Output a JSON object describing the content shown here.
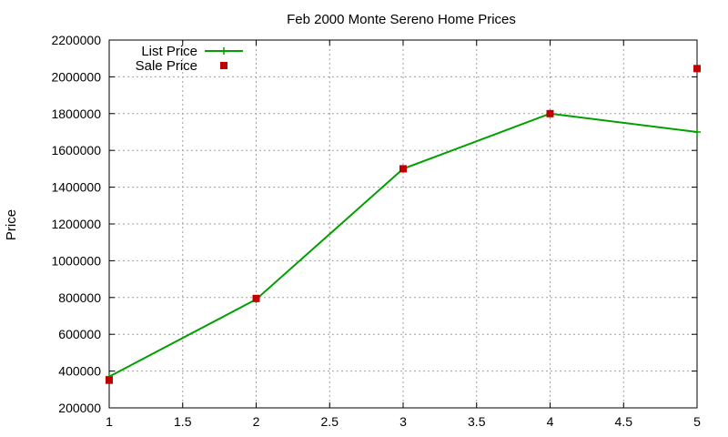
{
  "chart_data": {
    "type": "line",
    "title": "Feb 2000 Monte Sereno Home Prices",
    "xlabel": "",
    "ylabel": "Price",
    "xlim": [
      1,
      5
    ],
    "ylim": [
      200000,
      2200000
    ],
    "x_ticks": [
      "1",
      "1.5",
      "2",
      "2.5",
      "3",
      "3.5",
      "4",
      "4.5",
      "5"
    ],
    "y_ticks": [
      "200000",
      "400000",
      "600000",
      "800000",
      "1000000",
      "1200000",
      "1400000",
      "1600000",
      "1800000",
      "2000000",
      "2200000"
    ],
    "grid": true,
    "legend_position": "top-left",
    "series": [
      {
        "name": "List Price",
        "style": "line+cross",
        "color": "#00a000",
        "x": [
          1,
          2,
          3,
          4,
          5
        ],
        "values": [
          370000,
          790000,
          1500000,
          1800000,
          1700000
        ]
      },
      {
        "name": "Sale Price",
        "style": "square-points",
        "color": "#c00000",
        "x": [
          1,
          2,
          3,
          4,
          5
        ],
        "values": [
          350000,
          795000,
          1500000,
          1800000,
          2045000
        ]
      }
    ]
  }
}
